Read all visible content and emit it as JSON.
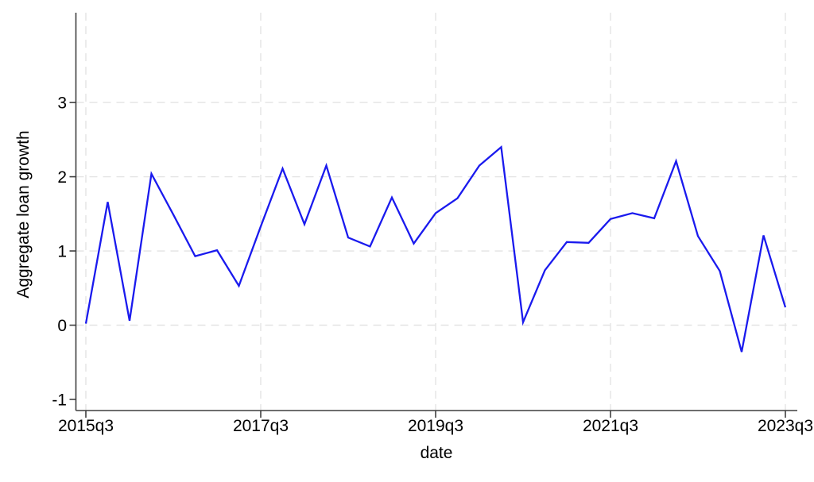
{
  "figure": {
    "background": "#ffffff"
  },
  "chart_data": {
    "type": "line",
    "title": "",
    "xlabel": "date",
    "ylabel": "Aggregate loan growth",
    "x": [
      "2015q3",
      "2015q4",
      "2016q1",
      "2016q2",
      "2016q3",
      "2016q4",
      "2017q1",
      "2017q2",
      "2017q3",
      "2017q4",
      "2018q1",
      "2018q2",
      "2018q3",
      "2018q4",
      "2019q1",
      "2019q2",
      "2019q3",
      "2019q4",
      "2020q1",
      "2020q2",
      "2020q3",
      "2020q4",
      "2021q1",
      "2021q2",
      "2021q3",
      "2021q4",
      "2022q1",
      "2022q2",
      "2022q3",
      "2022q4",
      "2023q1",
      "2023q2",
      "2023q3"
    ],
    "values": [
      0.02,
      1.66,
      0.06,
      2.04,
      1.49,
      0.93,
      1.01,
      0.53,
      1.33,
      2.11,
      1.36,
      2.15,
      1.18,
      1.06,
      1.72,
      1.1,
      1.51,
      1.71,
      2.15,
      2.4,
      0.04,
      0.74,
      1.12,
      1.11,
      1.43,
      1.51,
      1.44,
      2.21,
      1.2,
      0.73,
      -0.36,
      1.21,
      0.24
    ],
    "ylim": [
      -1.15,
      4.21
    ],
    "yticks": [
      -1,
      0,
      1,
      2,
      3
    ],
    "ytick_labels": [
      "-1",
      "0",
      "1",
      "2",
      "3"
    ],
    "xtick_indices": [
      0,
      8,
      16,
      24,
      32
    ],
    "xtick_labels": [
      "2015q3",
      "2017q3",
      "2019q3",
      "2021q3",
      "2023q3"
    ],
    "grid": {
      "show": true,
      "style": "dashed",
      "color": "#e4e4e4",
      "horizontal_at": [
        0,
        1,
        2,
        3
      ],
      "vertical_at_ticks": true
    },
    "legend": false,
    "line_color": "#1a1aee",
    "axis_color": "#3f3f3f",
    "text_color": "#000000"
  }
}
